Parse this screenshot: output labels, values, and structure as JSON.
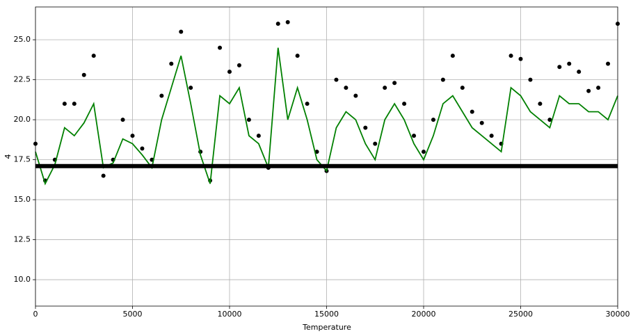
{
  "chart_data": {
    "type": "scatter",
    "x_label": "Temperature",
    "y_label": "4",
    "x": [
      0,
      500,
      1000,
      1500,
      2000,
      2500,
      3000,
      3500,
      4000,
      4500,
      5000,
      5500,
      6000,
      6500,
      7000,
      7500,
      8000,
      8500,
      9000,
      9500,
      10000,
      10500,
      11000,
      11500,
      12000,
      12500,
      13000,
      13500,
      14000,
      14500,
      15000,
      15500,
      16000,
      16500,
      17000,
      17500,
      18000,
      18500,
      19000,
      19500,
      20000,
      20500,
      21000,
      21500,
      22000,
      22500,
      23000,
      23500,
      24000,
      24500,
      25000,
      25500,
      26000,
      26500,
      27000,
      27500,
      28000,
      28500,
      29000,
      29500,
      30000
    ],
    "series": [
      {
        "type": "scatter",
        "color": "#000000",
        "values": [
          18.5,
          16.2,
          17.5,
          21.0,
          21.0,
          22.8,
          24.0,
          16.5,
          17.5,
          20.0,
          19.0,
          18.2,
          17.5,
          21.5,
          23.5,
          25.5,
          22.0,
          18.0,
          16.2,
          24.5,
          23.0,
          23.4,
          20.0,
          19.0,
          17.0,
          26.0,
          26.1,
          24.0,
          21.0,
          18.0,
          16.8,
          22.5,
          22.0,
          21.5,
          19.5,
          18.5,
          22.0,
          22.3,
          21.0,
          19.0,
          18.0,
          20.0,
          22.5,
          24.0,
          22.0,
          20.5,
          19.8,
          19.0,
          18.5,
          24.0,
          23.8,
          22.5,
          21.0,
          20.0,
          23.3,
          23.5,
          23.0,
          21.8,
          22.0,
          23.5,
          26.0
        ]
      },
      {
        "type": "line",
        "color": "#008000",
        "values": [
          18.0,
          16.0,
          17.2,
          19.5,
          19.0,
          19.8,
          21.0,
          17.0,
          17.3,
          18.8,
          18.5,
          17.8,
          17.0,
          20.0,
          22.0,
          24.0,
          21.0,
          17.8,
          16.0,
          21.5,
          21.0,
          22.0,
          19.0,
          18.5,
          17.0,
          24.5,
          20.0,
          22.0,
          20.0,
          17.5,
          16.8,
          19.5,
          20.5,
          20.0,
          18.5,
          17.5,
          20.0,
          21.0,
          20.0,
          18.5,
          17.5,
          19.0,
          21.0,
          21.5,
          20.5,
          19.5,
          19.0,
          18.5,
          18.0,
          22.0,
          21.5,
          20.5,
          20.0,
          19.5,
          21.5,
          21.0,
          21.0,
          20.5,
          20.5,
          20.0,
          21.5
        ]
      },
      {
        "type": "hline",
        "color": "#000000",
        "x": [
          0,
          30000
        ],
        "values": [
          17.1,
          17.1
        ]
      }
    ],
    "xlim": [
      0,
      30000
    ],
    "xticks": [
      0,
      5000,
      10000,
      15000,
      20000,
      25000,
      30000
    ],
    "ylim": [
      8.35,
      27.05
    ],
    "yticks": [
      {
        "value": 10,
        "label": "10.0"
      },
      12.5,
      {
        "value": 15,
        "label": "15.0"
      },
      17.5,
      {
        "value": 20,
        "label": "20.0"
      },
      22.5,
      {
        "value": 25,
        "label": "25.0"
      }
    ],
    "grid": true
  }
}
